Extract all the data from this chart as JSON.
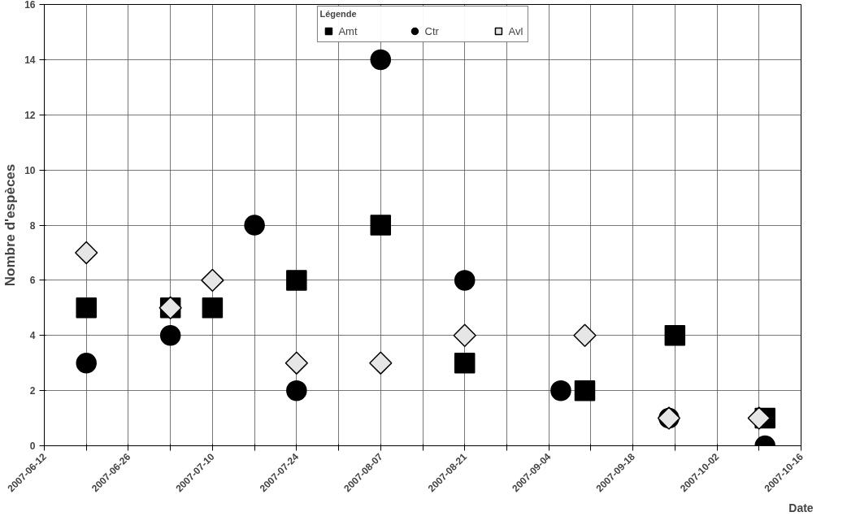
{
  "chart_data": {
    "type": "scatter",
    "xlabel": "Date",
    "ylabel": "Nombre d'espèces",
    "legend_title": "Légende",
    "legend": "top",
    "grid": true,
    "ylim": [
      0,
      16
    ],
    "yticks": [
      0,
      2,
      4,
      6,
      8,
      10,
      12,
      14,
      16
    ],
    "xlim": [
      "2007-06-12",
      "2007-10-16"
    ],
    "xticks": [
      "2007-06-12",
      {
        "value": "2007-06-19",
        "label": null
      },
      "2007-06-26",
      {
        "value": "2007-07-03",
        "label": null
      },
      "2007-07-10",
      {
        "value": "2007-07-17",
        "label": null
      },
      "2007-07-24",
      {
        "value": "2007-07-31",
        "label": null
      },
      "2007-08-07",
      {
        "value": "2007-08-14",
        "label": null
      },
      "2007-08-21",
      {
        "value": "2007-08-28",
        "label": null
      },
      "2007-09-04",
      {
        "value": "2007-09-11",
        "label": null
      },
      "2007-09-18",
      {
        "value": "2007-09-25",
        "label": null
      },
      "2007-10-02",
      {
        "value": "2007-10-09",
        "label": null
      },
      "2007-10-16"
    ],
    "series": [
      {
        "name": "Amt",
        "color": "#000000",
        "marker": "square",
        "x": [
          "2007-06-19",
          "2007-07-03",
          "2007-07-10",
          "2007-07-24",
          "2007-08-07",
          "2007-08-21",
          "2007-09-10",
          "2007-09-25",
          "2007-10-10"
        ],
        "values": [
          5,
          5,
          5,
          6,
          8,
          3,
          2,
          4,
          1
        ]
      },
      {
        "name": "Ctr",
        "color": "#000000",
        "marker": "circle",
        "x": [
          "2007-06-19",
          "2007-07-03",
          "2007-07-17",
          "2007-07-24",
          "2007-08-07",
          "2007-08-21",
          "2007-09-06",
          "2007-09-24",
          "2007-10-10"
        ],
        "values": [
          3,
          4,
          8,
          2,
          14,
          6,
          2,
          1,
          0
        ]
      },
      {
        "name": "Avl",
        "color": "#e6e6e6",
        "marker": "diamond",
        "x": [
          "2007-06-19",
          "2007-07-03",
          "2007-07-10",
          "2007-07-24",
          "2007-08-07",
          "2007-08-21",
          "2007-09-10",
          "2007-09-24",
          "2007-10-09"
        ],
        "values": [
          7,
          5,
          6,
          3,
          3,
          4,
          4,
          1,
          1
        ]
      }
    ]
  }
}
